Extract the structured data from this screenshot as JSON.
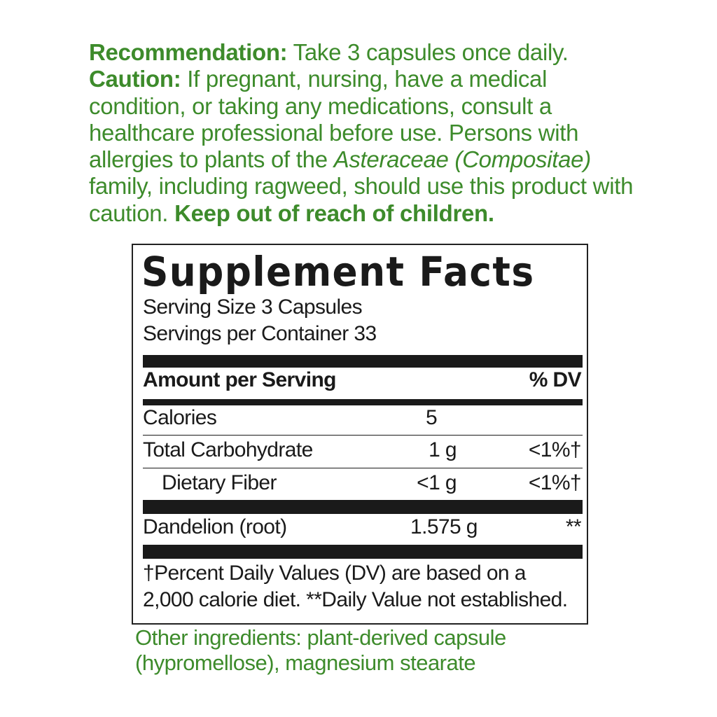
{
  "directions": {
    "recommendation_label": "Recommendation:",
    "recommendation_text": " Take 3 capsules once daily.",
    "caution_label": "Caution:",
    "caution_text": " If pregnant, nursing, have a medical condition, or taking any medications, consult a healthcare professional before use. Persons with allergies to plants of the ",
    "caution_italic": "Asteraceae (Compositae)",
    "caution_text2": " family, including ragweed, should use this product with caution. ",
    "keep_out": "Keep out of reach of children."
  },
  "facts": {
    "title": "Supplement Facts",
    "serving_size": "Serving Size 3 Capsules",
    "servings_per_container": "Servings per Container 33",
    "header_amount": "Amount per Serving",
    "header_dv": "% DV",
    "rows": [
      {
        "name": "Calories",
        "amount": "5",
        "dv": ""
      },
      {
        "name": "Total Carbohydrate",
        "amount": "1 g",
        "dv": "<1%†"
      },
      {
        "name": "Dietary Fiber",
        "amount": "<1 g",
        "dv": "<1%†"
      },
      {
        "name": "Dandelion (root)",
        "amount": "1.575 g",
        "dv": "**"
      }
    ],
    "footnote_1": "†Percent Daily Values (DV) are based on a",
    "footnote_2": "2,000 calorie diet. **Daily Value not established."
  },
  "other_ingredients": {
    "line_1": "Other ingredients: plant-derived capsule",
    "line_2": "(hypromellose), magnesium stearate"
  },
  "colors": {
    "green": "#3d8b2b",
    "black": "#1a1a1a"
  }
}
